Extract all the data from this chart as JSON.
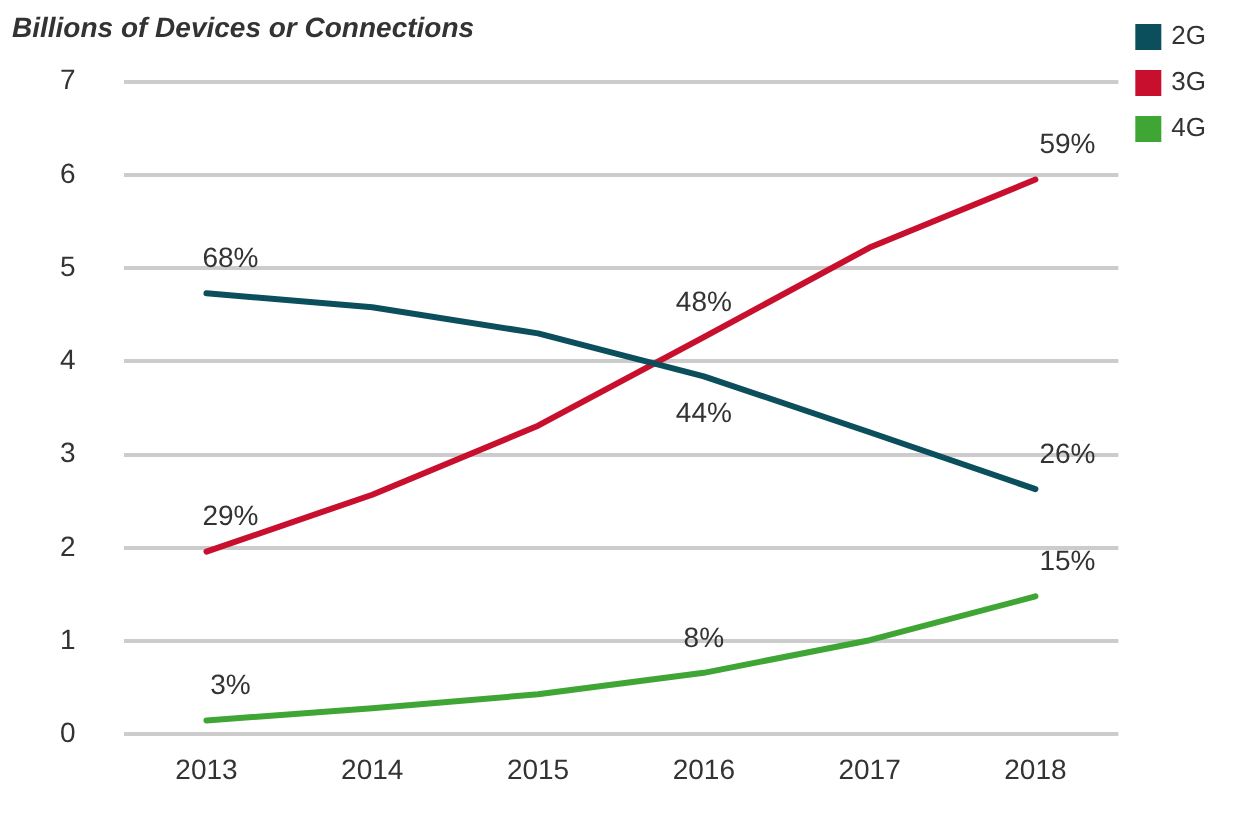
{
  "chart_data": {
    "type": "line",
    "ylabel": "Billions of Devices or Connections",
    "categories": [
      "2013",
      "2014",
      "2015",
      "2016",
      "2017",
      "2018"
    ],
    "series": [
      {
        "name": "2G",
        "color": "#0b4f5c",
        "values": [
          4.73,
          4.58,
          4.3,
          3.84,
          3.24,
          2.63
        ]
      },
      {
        "name": "3G",
        "color": "#c8102e",
        "values": [
          1.96,
          2.57,
          3.31,
          4.26,
          5.22,
          5.95
        ]
      },
      {
        "name": "4G",
        "color": "#3fa535",
        "values": [
          0.15,
          0.28,
          0.43,
          0.66,
          1.01,
          1.48
        ]
      }
    ],
    "ylim": [
      0,
      7
    ],
    "yticks": [
      0,
      1,
      2,
      3,
      4,
      5,
      6,
      7
    ],
    "grid": "y",
    "legend": "top right",
    "marker": "none",
    "line_style": "solid",
    "annotations": [
      {
        "text": "68%",
        "x": "2013",
        "y": 4.73
      },
      {
        "text": "29%",
        "x": "2013",
        "y": 1.96
      },
      {
        "text": "3%",
        "x": "2013",
        "y": 0.15
      },
      {
        "text": "48%",
        "x": "2016",
        "y": 4.26
      },
      {
        "text": "44%",
        "x": "2016",
        "y": 3.84
      },
      {
        "text": "8%",
        "x": "2016",
        "y": 0.66
      },
      {
        "text": "59%",
        "x": "2018",
        "y": 5.95
      },
      {
        "text": "26%",
        "x": "2018",
        "y": 2.63
      },
      {
        "text": "15%",
        "x": "2018",
        "y": 1.48
      }
    ]
  }
}
